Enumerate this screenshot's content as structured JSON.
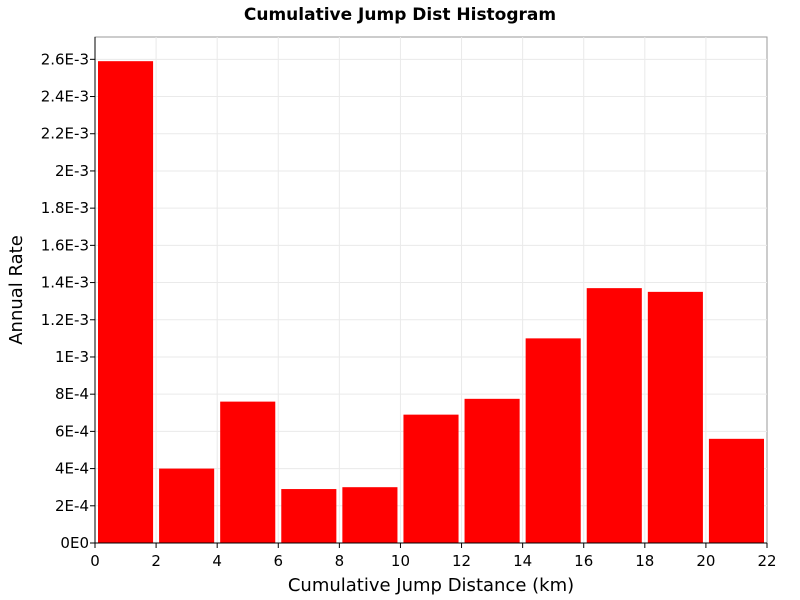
{
  "chart_data": {
    "type": "bar",
    "title": "Cumulative Jump Dist Histogram",
    "xlabel": "Cumulative Jump Distance (km)",
    "ylabel": "Annual Rate",
    "xlim": [
      0,
      22
    ],
    "ylim": [
      0,
      0.00272
    ],
    "x_ticks": [
      0,
      2,
      4,
      6,
      8,
      10,
      12,
      14,
      16,
      18,
      20,
      22
    ],
    "x_tick_labels": [
      "0",
      "2",
      "4",
      "6",
      "8",
      "10",
      "12",
      "14",
      "16",
      "18",
      "20",
      "22"
    ],
    "y_ticks": [
      0,
      0.0002,
      0.0004,
      0.0006,
      0.0008,
      0.001,
      0.0012,
      0.0014,
      0.0016,
      0.0018,
      0.002,
      0.0022,
      0.0024,
      0.0026
    ],
    "y_tick_labels": [
      "0E0",
      "2E-4",
      "4E-4",
      "6E-4",
      "8E-4",
      "1E-3",
      "1.2E-3",
      "1.4E-3",
      "1.6E-3",
      "1.8E-3",
      "2E-3",
      "2.2E-3",
      "2.4E-3",
      "2.6E-3"
    ],
    "grid": true,
    "bars": [
      {
        "x0": 0,
        "x1": 2,
        "value": 0.00259
      },
      {
        "x0": 2,
        "x1": 4,
        "value": 0.0004
      },
      {
        "x0": 4,
        "x1": 6,
        "value": 0.00076
      },
      {
        "x0": 6,
        "x1": 8,
        "value": 0.00029
      },
      {
        "x0": 8,
        "x1": 10,
        "value": 0.0003
      },
      {
        "x0": 10,
        "x1": 12,
        "value": 0.00069
      },
      {
        "x0": 12,
        "x1": 14,
        "value": 0.000775
      },
      {
        "x0": 14,
        "x1": 16,
        "value": 0.0011
      },
      {
        "x0": 16,
        "x1": 18,
        "value": 0.00137
      },
      {
        "x0": 18,
        "x1": 20,
        "value": 0.00135
      },
      {
        "x0": 20,
        "x1": 22,
        "value": 0.00056
      }
    ],
    "bar_color": "#ff0000"
  }
}
